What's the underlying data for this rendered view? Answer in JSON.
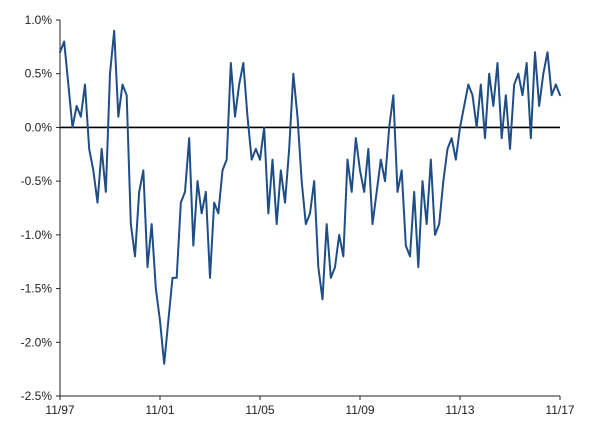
{
  "chart_data": {
    "type": "line",
    "title": "",
    "xlabel": "",
    "ylabel": "",
    "x_tick_labels": [
      "11/97",
      "11/01",
      "11/05",
      "11/09",
      "11/13",
      "11/17"
    ],
    "y_tick_labels": [
      "1.0%",
      "0.5%",
      "0.0%",
      "-0.5%",
      "-1.0%",
      "-1.5%",
      "-2.0%",
      "-2.5%"
    ],
    "y_ticks": [
      1.0,
      0.5,
      0.0,
      -0.5,
      -1.0,
      -1.5,
      -2.0,
      -2.5
    ],
    "ylim": [
      -2.5,
      1.0
    ],
    "xlim": [
      "1997-11",
      "2017-11"
    ],
    "zero_line": true,
    "grid": false,
    "legend": "none",
    "colors": {
      "series": "#1f4e87",
      "zero_line": "#000000",
      "axis": "#222222"
    },
    "series": [
      {
        "x": [
          "1997-11",
          "1998-01",
          "1998-03",
          "1998-05",
          "1998-07",
          "1998-09",
          "1998-11",
          "1999-01",
          "1999-03",
          "1999-05",
          "1999-07",
          "1999-09",
          "1999-11",
          "2000-01",
          "2000-03",
          "2000-05",
          "2000-07",
          "2000-09",
          "2000-11",
          "2001-01",
          "2001-03",
          "2001-05",
          "2001-07",
          "2001-09",
          "2001-11",
          "2002-01",
          "2002-03",
          "2002-05",
          "2002-07",
          "2002-09",
          "2002-11",
          "2003-01",
          "2003-03",
          "2003-05",
          "2003-07",
          "2003-09",
          "2003-11",
          "2004-01",
          "2004-03",
          "2004-05",
          "2004-07",
          "2004-09",
          "2004-11",
          "2005-01",
          "2005-03",
          "2005-05",
          "2005-07",
          "2005-09",
          "2005-11",
          "2006-01",
          "2006-03",
          "2006-05",
          "2006-07",
          "2006-09",
          "2006-11",
          "2007-01",
          "2007-03",
          "2007-05",
          "2007-07",
          "2007-09",
          "2007-11",
          "2008-01",
          "2008-03",
          "2008-05",
          "2008-07",
          "2008-09",
          "2008-11",
          "2009-01",
          "2009-03",
          "2009-05",
          "2009-07",
          "2009-09",
          "2009-11",
          "2010-01",
          "2010-03",
          "2010-05",
          "2010-07",
          "2010-09",
          "2010-11",
          "2011-01",
          "2011-03",
          "2011-05",
          "2011-07",
          "2011-09",
          "2011-11",
          "2012-01",
          "2012-03",
          "2012-05",
          "2012-07",
          "2012-09",
          "2012-11",
          "2013-01",
          "2013-03",
          "2013-05",
          "2013-07",
          "2013-09",
          "2013-11",
          "2014-01",
          "2014-03",
          "2014-05",
          "2014-07",
          "2014-09",
          "2014-11",
          "2015-01",
          "2015-03",
          "2015-05",
          "2015-07",
          "2015-09",
          "2015-11",
          "2016-01",
          "2016-03",
          "2016-05",
          "2016-07",
          "2016-09",
          "2016-11",
          "2017-01",
          "2017-03",
          "2017-05",
          "2017-07",
          "2017-09",
          "2017-11"
        ],
        "values": [
          0.7,
          0.8,
          0.4,
          0.0,
          0.2,
          0.1,
          0.4,
          -0.2,
          -0.4,
          -0.7,
          -0.2,
          -0.6,
          0.5,
          0.9,
          0.1,
          0.4,
          0.3,
          -0.9,
          -1.2,
          -0.6,
          -0.4,
          -1.3,
          -0.9,
          -1.5,
          -1.8,
          -2.2,
          -1.8,
          -1.4,
          -1.4,
          -0.7,
          -0.6,
          -0.1,
          -1.1,
          -0.5,
          -0.8,
          -0.6,
          -1.4,
          -0.7,
          -0.8,
          -0.4,
          -0.3,
          0.6,
          0.1,
          0.4,
          0.6,
          0.1,
          -0.3,
          -0.2,
          -0.3,
          0.0,
          -0.8,
          -0.3,
          -0.9,
          -0.4,
          -0.7,
          -0.2,
          0.5,
          0.1,
          -0.5,
          -0.9,
          -0.8,
          -0.5,
          -1.3,
          -1.6,
          -0.9,
          -1.4,
          -1.3,
          -1.0,
          -1.2,
          -0.3,
          -0.6,
          -0.1,
          -0.4,
          -0.6,
          -0.2,
          -0.9,
          -0.6,
          -0.3,
          -0.5,
          0.0,
          0.3,
          -0.6,
          -0.4,
          -1.1,
          -1.2,
          -0.6,
          -1.3,
          -0.5,
          -0.9,
          -0.3,
          -1.0,
          -0.9,
          -0.5,
          -0.2,
          -0.1,
          -0.3,
          0.0,
          0.2,
          0.4,
          0.3,
          0.0,
          0.4,
          -0.1,
          0.5,
          0.2,
          0.6,
          -0.1,
          0.3,
          -0.2,
          0.4,
          0.5,
          0.3,
          0.6,
          -0.1,
          0.7,
          0.2,
          0.5,
          0.7,
          0.3,
          0.4,
          0.3
        ]
      }
    ]
  }
}
